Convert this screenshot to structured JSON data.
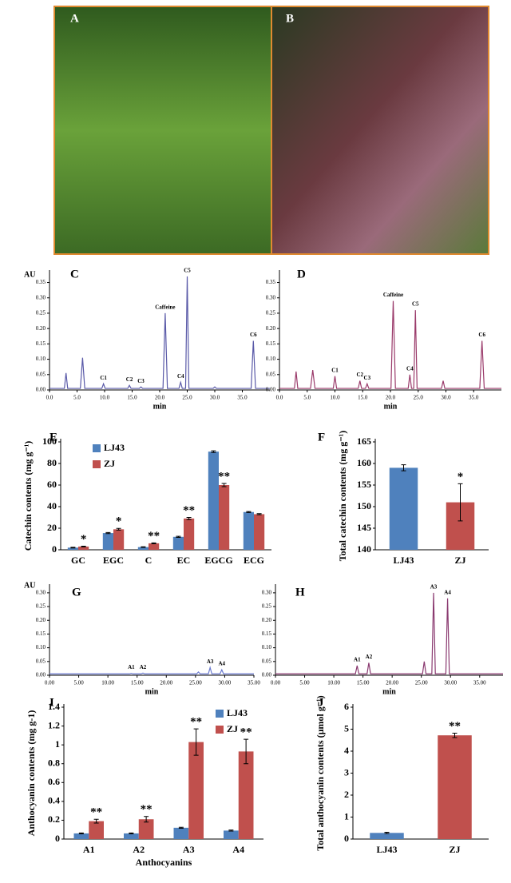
{
  "photo_panels": [
    "A",
    "B"
  ],
  "chart_data": [
    {
      "type": "line",
      "panel_label": "C",
      "ylabel": "AU",
      "xlabel": "min",
      "color": "#5a5aa8",
      "x": [
        0,
        2.7,
        3,
        3.3,
        5.6,
        6,
        6.4,
        9.5,
        9.8,
        10.1,
        14.2,
        14.5,
        14.8,
        16.3,
        16.6,
        16.9,
        20.6,
        21,
        21.4,
        23.5,
        23.8,
        24.1,
        24.7,
        25,
        25.3,
        29.7,
        30,
        30.3,
        36.6,
        37,
        37.4,
        40
      ],
      "values": [
        0.005,
        0.005,
        0.055,
        0.005,
        0.005,
        0.105,
        0.005,
        0.005,
        0.02,
        0.005,
        0.005,
        0.015,
        0.005,
        0.005,
        0.01,
        0.005,
        0.005,
        0.25,
        0.005,
        0.005,
        0.025,
        0.005,
        0.005,
        0.37,
        0.005,
        0.005,
        0.01,
        0.005,
        0.005,
        0.16,
        0.005,
        0.005
      ],
      "point_labels": [
        null,
        null,
        null,
        null,
        null,
        null,
        null,
        null,
        "C1",
        null,
        null,
        "C2",
        null,
        null,
        "C3",
        null,
        null,
        "Caffeine",
        null,
        null,
        "C4",
        null,
        null,
        "C5",
        null,
        null,
        null,
        null,
        null,
        "C6",
        null,
        null
      ],
      "xlim": [
        0,
        40
      ],
      "ylim": [
        0,
        0.38
      ],
      "xticks": [
        {
          "value": 0,
          "label": "0.0"
        },
        {
          "value": 5,
          "label": "5.0"
        },
        {
          "value": 10,
          "label": "10.0"
        },
        {
          "value": 15,
          "label": "15.0"
        },
        {
          "value": 20,
          "label": "20.0"
        },
        {
          "value": 25,
          "label": "25.0"
        },
        {
          "value": 30,
          "label": "30.0"
        },
        {
          "value": 35,
          "label": "35.0"
        }
      ],
      "yticks": [
        {
          "value": 0,
          "label": "0.00"
        },
        {
          "value": 0.05,
          "label": "0.05"
        },
        {
          "value": 0.1,
          "label": "0.10"
        },
        {
          "value": 0.15,
          "label": "0.15"
        },
        {
          "value": 0.2,
          "label": "0.20"
        },
        {
          "value": 0.25,
          "label": "0.25"
        },
        {
          "value": 0.3,
          "label": "0.30"
        },
        {
          "value": 0.35,
          "label": "0.35"
        }
      ]
    },
    {
      "type": "line",
      "panel_label": "D",
      "xlabel": "min",
      "color": "#9a3a6a",
      "x": [
        0,
        2.7,
        3,
        3.3,
        5.6,
        6,
        6.4,
        9.7,
        10,
        10.3,
        14.2,
        14.5,
        14.8,
        15.5,
        15.8,
        16.1,
        20.1,
        20.5,
        20.9,
        23.2,
        23.5,
        23.8,
        24.2,
        24.5,
        24.8,
        29.2,
        29.5,
        29.8,
        36.1,
        36.5,
        36.9,
        40
      ],
      "values": [
        0.005,
        0.005,
        0.06,
        0.005,
        0.005,
        0.065,
        0.005,
        0.005,
        0.045,
        0.005,
        0.005,
        0.03,
        0.005,
        0.005,
        0.02,
        0.005,
        0.005,
        0.29,
        0.005,
        0.005,
        0.05,
        0.005,
        0.005,
        0.26,
        0.005,
        0.005,
        0.03,
        0.005,
        0.005,
        0.16,
        0.005,
        0.005
      ],
      "point_labels": [
        null,
        null,
        null,
        null,
        null,
        null,
        null,
        null,
        "C1",
        null,
        null,
        "C2",
        null,
        null,
        "C3",
        null,
        null,
        "Caffeine",
        null,
        null,
        "C4",
        null,
        null,
        "C5",
        null,
        null,
        null,
        null,
        null,
        "C6",
        null,
        null
      ],
      "xlim": [
        0,
        40
      ],
      "ylim": [
        0,
        0.38
      ],
      "xticks": [
        {
          "value": 0,
          "label": "0.0"
        },
        {
          "value": 5,
          "label": "5.0"
        },
        {
          "value": 10,
          "label": "10.0"
        },
        {
          "value": 15,
          "label": "15.0"
        },
        {
          "value": 20,
          "label": "20.0"
        },
        {
          "value": 25,
          "label": "25.0"
        },
        {
          "value": 30,
          "label": "30.0"
        },
        {
          "value": 35,
          "label": "35.0"
        }
      ],
      "yticks": [
        {
          "value": 0,
          "label": "0.00"
        },
        {
          "value": 0.05,
          "label": "0.05"
        },
        {
          "value": 0.1,
          "label": "0.10"
        },
        {
          "value": 0.15,
          "label": "0.15"
        },
        {
          "value": 0.2,
          "label": "0.20"
        },
        {
          "value": 0.25,
          "label": "0.25"
        },
        {
          "value": 0.3,
          "label": "0.30"
        },
        {
          "value": 0.35,
          "label": "0.35"
        }
      ]
    },
    {
      "type": "bar",
      "panel_label": "E",
      "ylabel": "Catechin contents (mg g⁻¹)",
      "legend": "top-left",
      "categories": [
        "GC",
        "EGC",
        "C",
        "EC",
        "EGCG",
        "ECG"
      ],
      "series": [
        {
          "name": "LJ43",
          "color": "#4f81bd",
          "values": [
            2,
            15.5,
            2.5,
            12,
            91,
            35
          ],
          "errors": [
            0.3,
            0.5,
            0.3,
            0.5,
            0.8,
            0.5
          ],
          "significance": [
            null,
            null,
            null,
            null,
            null,
            null
          ]
        },
        {
          "name": "ZJ",
          "color": "#c0504d",
          "values": [
            3,
            19,
            6,
            29,
            60,
            33
          ],
          "errors": [
            0.3,
            0.8,
            0.4,
            1,
            1.5,
            0.5
          ],
          "significance": [
            "*",
            "*",
            "**",
            "**",
            "**",
            null
          ]
        }
      ],
      "ylim": [
        0,
        100
      ],
      "yticks": [
        0,
        20,
        40,
        60,
        80,
        100
      ]
    },
    {
      "type": "bar",
      "panel_label": "F",
      "ylabel": "Total catechin contents (mg g⁻¹)",
      "categories": [
        "LJ43",
        "ZJ"
      ],
      "series": [
        {
          "colors": [
            "#4f81bd",
            "#c0504d"
          ],
          "values": [
            159,
            151
          ],
          "errors": [
            0.7,
            4.3
          ],
          "significance": [
            null,
            "*"
          ]
        }
      ],
      "ylim": [
        140,
        165
      ],
      "yticks": [
        140,
        145,
        150,
        155,
        160,
        165
      ]
    },
    {
      "type": "line",
      "panel_label": "G",
      "ylabel": "AU",
      "xlabel": "min",
      "color": "#6a7ad0",
      "x": [
        0,
        13.7,
        14,
        14.3,
        15.7,
        16,
        16.3,
        25.2,
        25.5,
        25.8,
        27.2,
        27.5,
        27.8,
        29.2,
        29.5,
        29.8,
        35
      ],
      "values": [
        0.005,
        0.005,
        0.007,
        0.005,
        0.005,
        0.008,
        0.005,
        0.005,
        0.012,
        0.005,
        0.005,
        0.028,
        0.005,
        0.005,
        0.02,
        0.005,
        0.005
      ],
      "point_labels": [
        null,
        null,
        "A1",
        null,
        null,
        "A2",
        null,
        null,
        null,
        null,
        null,
        "A3",
        null,
        null,
        "A4",
        null,
        null
      ],
      "xlim": [
        0,
        35
      ],
      "ylim": [
        0,
        0.32
      ],
      "xticks": [
        {
          "value": 0,
          "label": "0.00"
        },
        {
          "value": 5,
          "label": "5.00"
        },
        {
          "value": 10,
          "label": "10.00"
        },
        {
          "value": 15,
          "label": "15.00"
        },
        {
          "value": 20,
          "label": "20.00"
        },
        {
          "value": 25,
          "label": "25.00"
        },
        {
          "value": 30,
          "label": "30.00"
        },
        {
          "value": 35,
          "label": "35.00"
        }
      ],
      "yticks": [
        {
          "value": 0,
          "label": "0.00"
        },
        {
          "value": 0.05,
          "label": "0.05"
        },
        {
          "value": 0.1,
          "label": "0.10"
        },
        {
          "value": 0.15,
          "label": "0.15"
        },
        {
          "value": 0.2,
          "label": "0.20"
        },
        {
          "value": 0.25,
          "label": "0.25"
        },
        {
          "value": 0.3,
          "label": "0.30"
        }
      ]
    },
    {
      "type": "line",
      "panel_label": "H",
      "xlabel": "min",
      "color": "#8a3a70",
      "x": [
        0,
        13.7,
        14,
        14.3,
        15.7,
        16,
        16.3,
        25.2,
        25.5,
        25.8,
        26.8,
        27.1,
        27.4,
        29.2,
        29.5,
        29.8,
        39
      ],
      "values": [
        0.005,
        0.005,
        0.035,
        0.005,
        0.005,
        0.045,
        0.005,
        0.005,
        0.05,
        0.005,
        0.005,
        0.3,
        0.005,
        0.005,
        0.28,
        0.005,
        0.005
      ],
      "point_labels": [
        null,
        null,
        "A1",
        null,
        null,
        "A2",
        null,
        null,
        null,
        null,
        null,
        "A3",
        null,
        null,
        "A4",
        null,
        null
      ],
      "xlim": [
        0,
        39
      ],
      "ylim": [
        0,
        0.32
      ],
      "xticks": [
        {
          "value": 0,
          "label": "0.00"
        },
        {
          "value": 5,
          "label": "5.00"
        },
        {
          "value": 10,
          "label": "10.00"
        },
        {
          "value": 15,
          "label": "15.00"
        },
        {
          "value": 20,
          "label": "20.00"
        },
        {
          "value": 25,
          "label": "25.00"
        },
        {
          "value": 30,
          "label": "30.00"
        },
        {
          "value": 35,
          "label": "35.00"
        }
      ],
      "yticks": [
        {
          "value": 0,
          "label": "0.00"
        },
        {
          "value": 0.05,
          "label": "0.05"
        },
        {
          "value": 0.1,
          "label": "0.10"
        },
        {
          "value": 0.15,
          "label": "0.15"
        },
        {
          "value": 0.2,
          "label": "0.20"
        },
        {
          "value": 0.25,
          "label": "0.25"
        },
        {
          "value": 0.3,
          "label": "0.30"
        }
      ]
    },
    {
      "type": "bar",
      "panel_label": "I",
      "ylabel": "Anthocyanin contents (mg g-1)",
      "xlabel": "Anthocyanins",
      "legend": "top-right",
      "categories": [
        "A1",
        "A2",
        "A3",
        "A4"
      ],
      "series": [
        {
          "name": "LJ43",
          "color": "#4f81bd",
          "values": [
            0.06,
            0.06,
            0.12,
            0.09
          ],
          "errors": [
            0.005,
            0.005,
            0.005,
            0.005
          ],
          "significance": [
            null,
            null,
            null,
            null
          ]
        },
        {
          "name": "ZJ",
          "color": "#c0504d",
          "values": [
            0.19,
            0.21,
            1.03,
            0.93
          ],
          "errors": [
            0.02,
            0.03,
            0.14,
            0.13
          ],
          "significance": [
            "**",
            "**",
            "**",
            "**"
          ]
        }
      ],
      "ylim": [
        0,
        1.4
      ],
      "yticks": [
        0,
        0.2,
        0.4,
        0.6,
        0.8,
        1,
        1.2,
        1.4
      ]
    },
    {
      "type": "bar",
      "panel_label": "J",
      "ylabel": "Total anthocyanin contents (μmol g⁻¹)",
      "categories": [
        "LJ43",
        "ZJ"
      ],
      "series": [
        {
          "colors": [
            "#4f81bd",
            "#c0504d"
          ],
          "values": [
            0.28,
            4.72
          ],
          "errors": [
            0.03,
            0.1
          ],
          "significance": [
            null,
            "**"
          ]
        }
      ],
      "ylim": [
        0,
        6
      ],
      "yticks": [
        0,
        1,
        2,
        3,
        4,
        5,
        6
      ]
    }
  ]
}
